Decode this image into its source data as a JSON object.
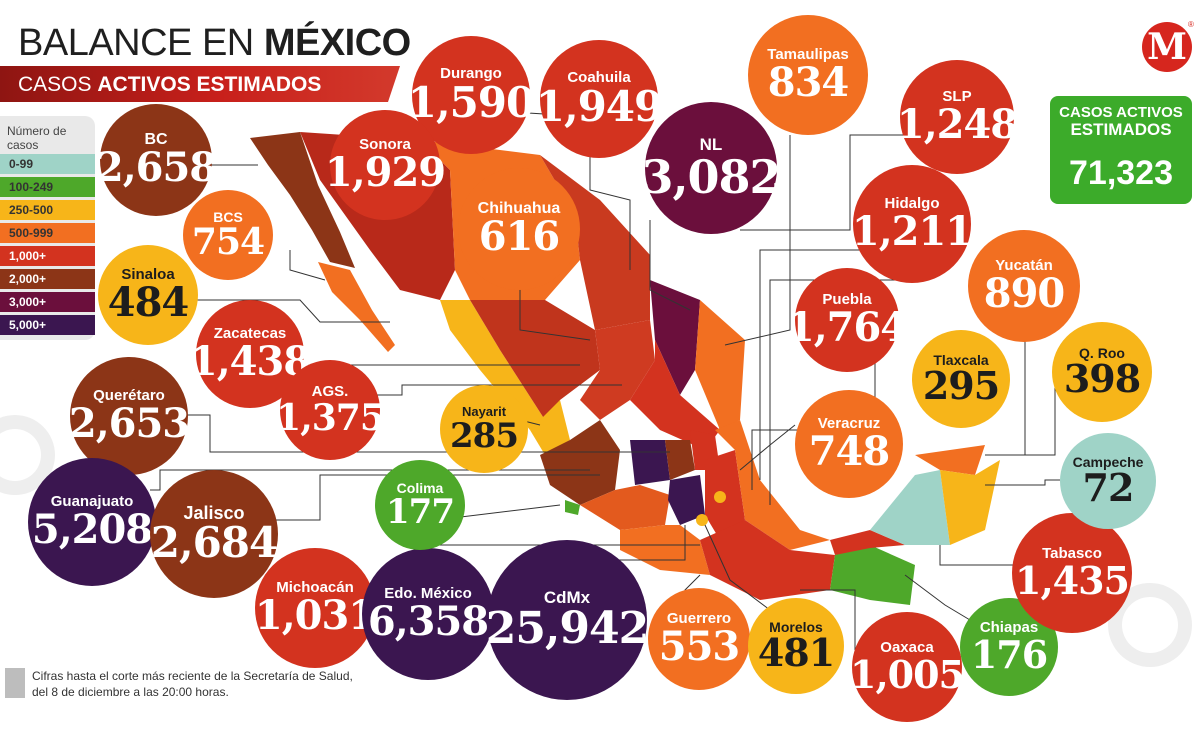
{
  "header": {
    "title_normal": "BALANCE EN ",
    "title_bold": "MÉXICO",
    "subtitle_normal": "CASOS ",
    "subtitle_bold": "ACTIVOS ESTIMADOS"
  },
  "logo": {
    "letter": "M",
    "reg": "®"
  },
  "legend": {
    "title": "Número de casos",
    "items": [
      {
        "label": "0-99",
        "color": "#9fd3c7",
        "text_color": "#333333"
      },
      {
        "label": "100-249",
        "color": "#4ea82a",
        "text_color": "#333333"
      },
      {
        "label": "250-500",
        "color": "#f7b519",
        "text_color": "#333333"
      },
      {
        "label": "500-999",
        "color": "#f26f21",
        "text_color": "#333333"
      },
      {
        "label": "1,000+",
        "color": "#d3331f",
        "text_color": "#333333"
      },
      {
        "label": "2,000+",
        "color": "#8c3517",
        "text_color": "#333333"
      },
      {
        "label": "3,000+",
        "color": "#6b0f3c",
        "text_color": "#333333"
      },
      {
        "label": "5,000+",
        "color": "#3b1650",
        "text_color": "#333333"
      }
    ]
  },
  "total": {
    "label_line1": "CASOS ACTIVOS",
    "label_line2": "ESTIMADOS",
    "value": "71,323",
    "color": "#3cab2a"
  },
  "states": [
    {
      "name": "BC",
      "value": "2,658",
      "color": "#8c3517"
    },
    {
      "name": "BCS",
      "value": "754",
      "color": "#f26f21"
    },
    {
      "name": "Sinaloa",
      "value": "484",
      "color": "#f7b519"
    },
    {
      "name": "Zacatecas",
      "value": "1,438",
      "color": "#d3331f"
    },
    {
      "name": "Querétaro",
      "value": "2,653",
      "color": "#8c3517"
    },
    {
      "name": "AGS.",
      "value": "1,375",
      "color": "#d3331f"
    },
    {
      "name": "Guanajuato",
      "value": "5,208",
      "color": "#3b1650"
    },
    {
      "name": "Jalisco",
      "value": "2,684",
      "color": "#8c3517"
    },
    {
      "name": "Michoacán",
      "value": "1,031",
      "color": "#d3331f"
    },
    {
      "name": "Edo. México",
      "value": "6,358",
      "color": "#3b1650"
    },
    {
      "name": "CdMx",
      "value": "25,942",
      "color": "#3b1650"
    },
    {
      "name": "Guerrero",
      "value": "553",
      "color": "#f26f21"
    },
    {
      "name": "Morelos",
      "value": "481",
      "color": "#f7b519"
    },
    {
      "name": "Oaxaca",
      "value": "1,005",
      "color": "#d3331f"
    },
    {
      "name": "Chiapas",
      "value": "176",
      "color": "#4ea82a"
    },
    {
      "name": "Tabasco",
      "value": "1,435",
      "color": "#d3331f"
    },
    {
      "name": "Campeche",
      "value": "72",
      "color": "#9fd3c7"
    },
    {
      "name": "Q. Roo",
      "value": "398",
      "color": "#f7b519"
    },
    {
      "name": "Yucatán",
      "value": "890",
      "color": "#f26f21"
    },
    {
      "name": "Veracruz",
      "value": "748",
      "color": "#f26f21"
    },
    {
      "name": "Tlaxcala",
      "value": "295",
      "color": "#f7b519"
    },
    {
      "name": "Puebla",
      "value": "1,764",
      "color": "#d3331f"
    },
    {
      "name": "Hidalgo",
      "value": "1,211",
      "color": "#d3331f"
    },
    {
      "name": "SLP",
      "value": "1,248",
      "color": "#d3331f"
    },
    {
      "name": "Tamaulipas",
      "value": "834",
      "color": "#f26f21"
    },
    {
      "name": "NL",
      "value": "3,082",
      "color": "#6b0f3c"
    },
    {
      "name": "Coahuila",
      "value": "1,949",
      "color": "#d3331f"
    },
    {
      "name": "Durango",
      "value": "1,590",
      "color": "#d3331f"
    },
    {
      "name": "Sonora",
      "value": "1,929",
      "color": "#d3331f"
    },
    {
      "name": "Chihuahua",
      "value": "616",
      "color": "#f26f21"
    },
    {
      "name": "Nayarit",
      "value": "285",
      "color": "#f7b519"
    },
    {
      "name": "Colima",
      "value": "177",
      "color": "#4ea82a"
    }
  ],
  "footnote": "Cifras hasta el corte más reciente de la Secretaría de Salud, del 8 de diciembre a las 20:00 horas."
}
